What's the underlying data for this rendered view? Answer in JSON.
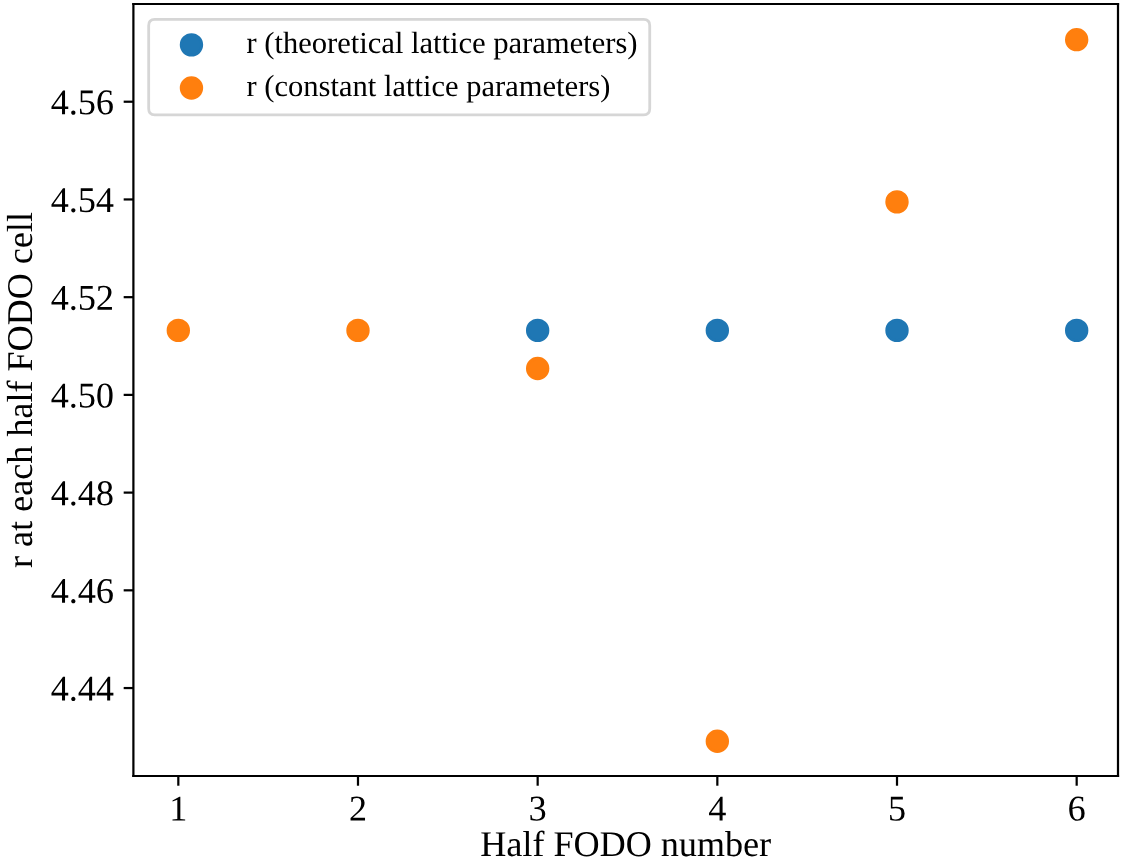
{
  "chart_data": {
    "type": "scatter",
    "xlabel": "Half FODO number",
    "ylabel": "r at each half FODO cell",
    "x": [
      1,
      2,
      3,
      4,
      5,
      6
    ],
    "series": [
      {
        "name": "r (theoretical lattice parameters)",
        "color": "#1f77b4",
        "values": [
          null,
          null,
          4.5132,
          4.5132,
          4.5132,
          4.5132
        ]
      },
      {
        "name": "r (constant lattice parameters)",
        "color": "#ff7f0e",
        "values": [
          4.5132,
          4.5132,
          4.5054,
          4.4291,
          4.5395,
          4.5727
        ]
      }
    ],
    "xlim": [
      0.75,
      6.23
    ],
    "ylim": [
      4.422,
      4.58
    ],
    "xticks": [
      1,
      2,
      3,
      4,
      5,
      6
    ],
    "yticks": [
      4.44,
      4.46,
      4.48,
      {
        "value": 4.5,
        "label": "4.50"
      },
      4.52,
      4.54,
      4.56
    ],
    "legend": "top left",
    "marker": "circle",
    "grid": false
  }
}
